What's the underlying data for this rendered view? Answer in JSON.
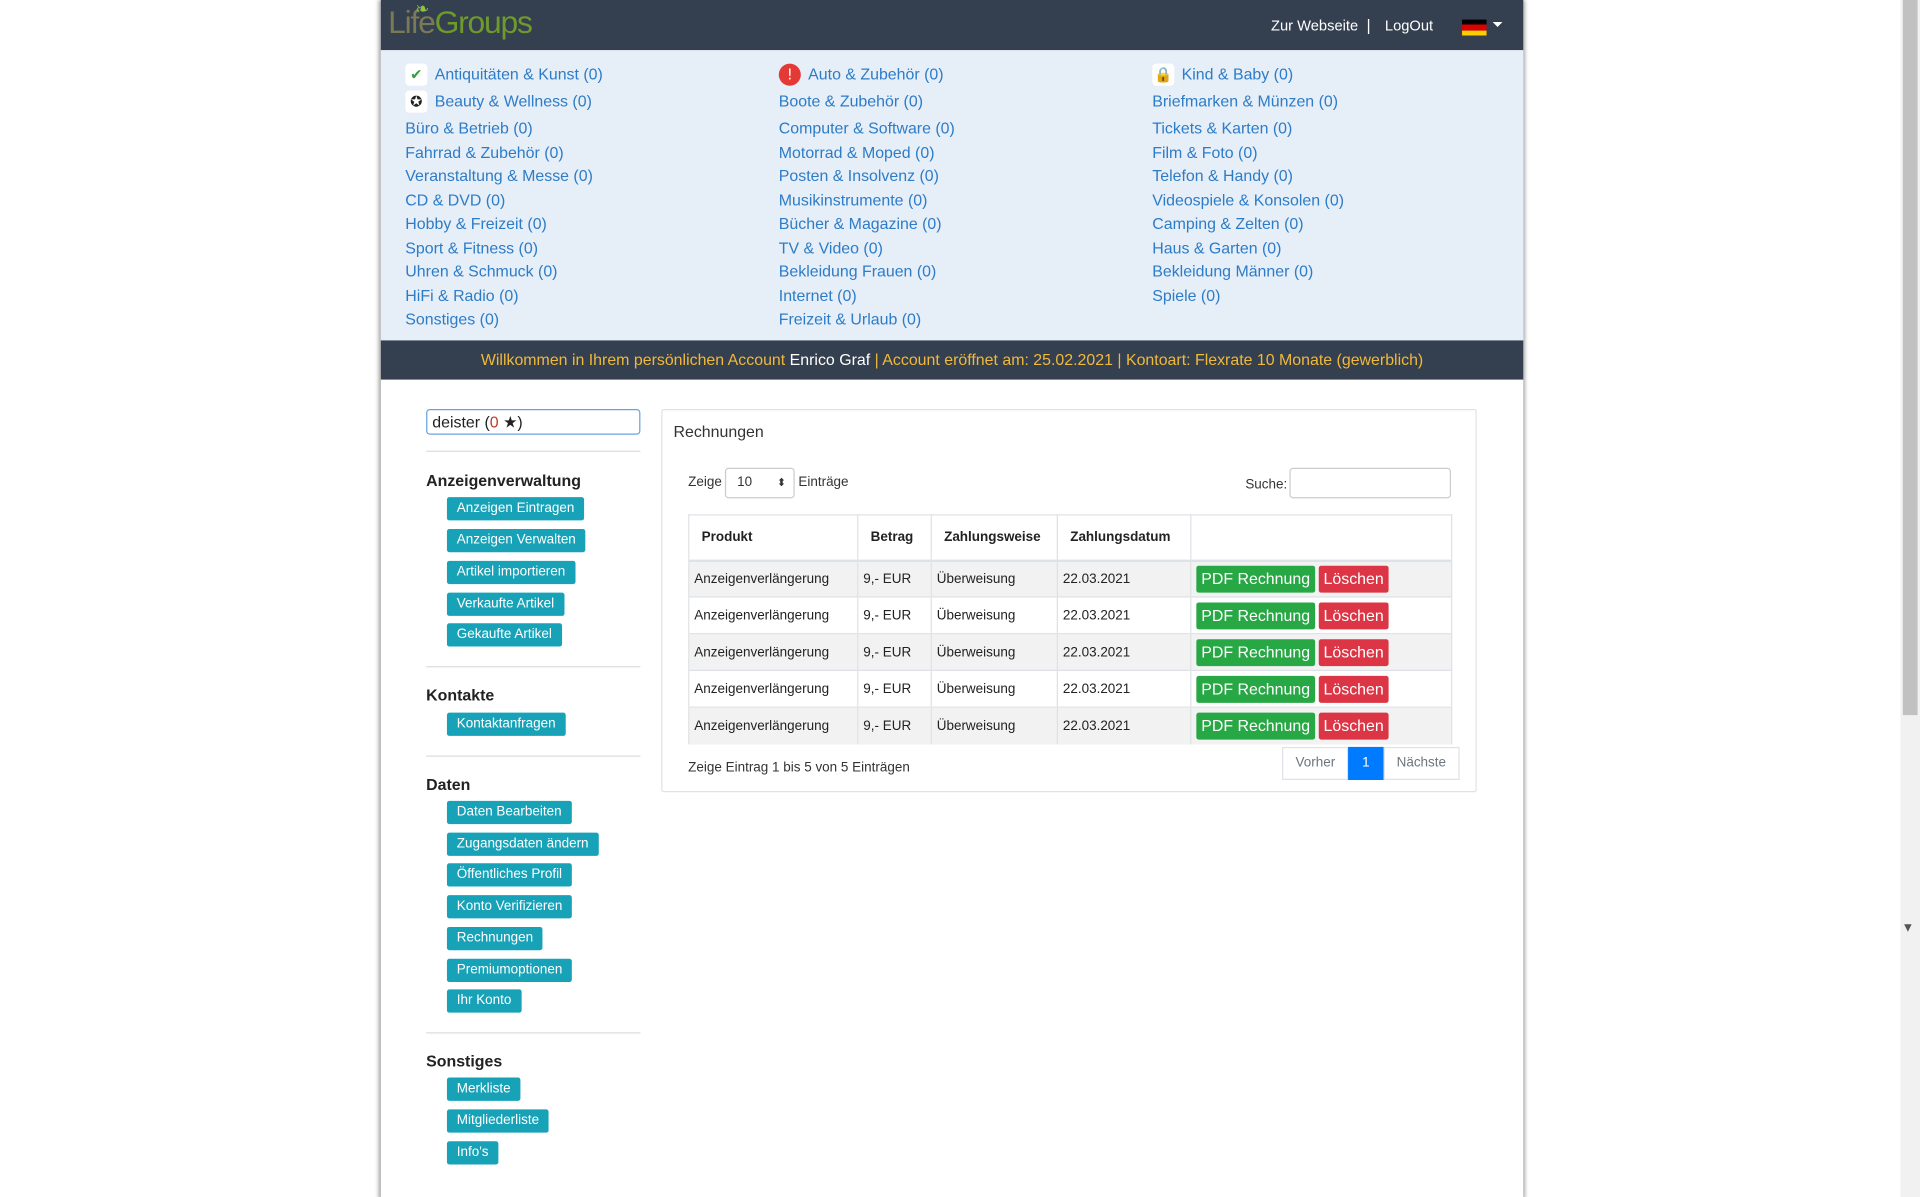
{
  "header": {
    "logo_life": "Life",
    "logo_groups": "Groups",
    "link_website": "Zur Webseite",
    "separator": "|",
    "link_logout": "LogOut"
  },
  "colors": {
    "topbar": "#343f4f",
    "category_bg": "#e6eef8",
    "link": "#2d7cc7",
    "welcome_text": "#f0b93a",
    "sidebar_button": "#17a2b8",
    "pdf_button": "#28a745",
    "delete_button": "#dc3545",
    "pager_active": "#007bff"
  },
  "categories": {
    "col1": [
      {
        "label": "Antiquitäten & Kunst (0)",
        "icon": "check-badge-icon"
      },
      {
        "label": "Beauty & Wellness (0)",
        "icon": "award-ribbon-icon"
      },
      {
        "label": "Büro & Betrieb (0)"
      },
      {
        "label": "Fahrrad & Zubehör (0)"
      },
      {
        "label": "Veranstaltung & Messe (0)"
      },
      {
        "label": "CD & DVD (0)"
      },
      {
        "label": "Hobby & Freizeit (0)"
      },
      {
        "label": "Sport & Fitness (0)"
      },
      {
        "label": "Uhren & Schmuck (0)"
      },
      {
        "label": "HiFi & Radio (0)"
      },
      {
        "label": "Sonstiges (0)"
      }
    ],
    "col2": [
      {
        "label": "Auto & Zubehör (0)",
        "icon": "warning-octagon-icon"
      },
      {
        "label": "Boote & Zubehör (0)"
      },
      {
        "label": "Computer & Software (0)"
      },
      {
        "label": "Motorrad & Moped (0)"
      },
      {
        "label": "Posten & Insolvenz (0)"
      },
      {
        "label": "Musikinstrumente (0)"
      },
      {
        "label": "Bücher & Magazine (0)"
      },
      {
        "label": "TV & Video (0)"
      },
      {
        "label": "Bekleidung Frauen (0)"
      },
      {
        "label": "Internet (0)"
      },
      {
        "label": "Freizeit & Urlaub (0)"
      }
    ],
    "col3": [
      {
        "label": "Kind & Baby (0)",
        "icon": "lock-icon"
      },
      {
        "label": "Briefmarken & Münzen (0)"
      },
      {
        "label": "Tickets & Karten (0)"
      },
      {
        "label": "Film & Foto (0)"
      },
      {
        "label": "Telefon & Handy (0)"
      },
      {
        "label": "Videospiele & Konsolen (0)"
      },
      {
        "label": "Camping & Zelten (0)"
      },
      {
        "label": "Haus & Garten (0)"
      },
      {
        "label": "Bekleidung Männer (0)"
      },
      {
        "label": "Spiele (0)"
      }
    ]
  },
  "welcome": {
    "prefix": "Willkommen in Ihrem persönlichen Account",
    "name": "Enrico Graf",
    "suffix": "| Account eröffnet am: 25.02.2021 | Kontoart: Flexrate 10 Monate (gewerblich)"
  },
  "sidebar": {
    "user": {
      "name": "deister",
      "open": "(",
      "count": "0",
      "close": ")"
    },
    "sections": [
      {
        "title": "Anzeigenverwaltung",
        "buttons": [
          "Anzeigen Eintragen",
          "Anzeigen Verwalten",
          "Artikel importieren",
          "Verkaufte Artikel",
          "Gekaufte Artikel"
        ]
      },
      {
        "title": "Kontakte",
        "buttons": [
          "Kontaktanfragen"
        ]
      },
      {
        "title": "Daten",
        "buttons": [
          "Daten Bearbeiten",
          "Zugangsdaten ändern",
          "Öffentliches Profil",
          "Konto Verifizieren",
          "Rechnungen",
          "Premiumoptionen",
          "Ihr Konto"
        ]
      },
      {
        "title": "Sonstiges",
        "buttons": [
          "Merkliste",
          "Mitgliederliste",
          "Info's"
        ]
      }
    ]
  },
  "invoices": {
    "title": "Rechnungen",
    "show_label": "Zeige",
    "page_size": "10",
    "entries_label": "Einträge",
    "search_label": "Suche:",
    "search_value": "",
    "columns": [
      "Produkt",
      "Betrag",
      "Zahlungsweise",
      "Zahlungsdatum",
      ""
    ],
    "rows": [
      {
        "product": "Anzeigenverlängerung",
        "amount": "9,- EUR",
        "method": "Überweisung",
        "date": "22.03.2021"
      },
      {
        "product": "Anzeigenverlängerung",
        "amount": "9,- EUR",
        "method": "Überweisung",
        "date": "22.03.2021"
      },
      {
        "product": "Anzeigenverlängerung",
        "amount": "9,- EUR",
        "method": "Überweisung",
        "date": "22.03.2021"
      },
      {
        "product": "Anzeigenverlängerung",
        "amount": "9,- EUR",
        "method": "Überweisung",
        "date": "22.03.2021"
      },
      {
        "product": "Anzeigenverlängerung",
        "amount": "9,- EUR",
        "method": "Überweisung",
        "date": "22.03.2021"
      }
    ],
    "pdf_label": "PDF Rechnung",
    "delete_label": "Löschen",
    "info_text": "Zeige Eintrag 1 bis 5 von 5 Einträgen",
    "pager": {
      "prev": "Vorher",
      "current": "1",
      "next": "Nächste"
    }
  }
}
